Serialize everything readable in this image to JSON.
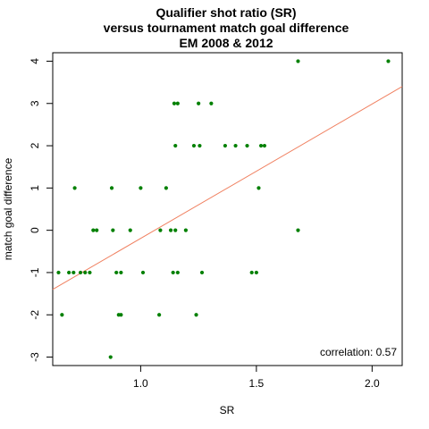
{
  "chart_data": {
    "type": "scatter",
    "title_lines": [
      "Qualifier shot ratio (SR)",
      "versus tournament match goal difference",
      "EM 2008 & 2012"
    ],
    "xlabel": "SR",
    "ylabel": "match goal difference",
    "xlim": [
      0.62,
      2.13
    ],
    "ylim": [
      -3.2,
      4.2
    ],
    "x_ticks": [
      1.0,
      1.5,
      2.0
    ],
    "x_tick_labels": [
      "1.0",
      "1.5",
      "2.0"
    ],
    "y_ticks": [
      -3,
      -2,
      -1,
      0,
      1,
      2,
      3,
      4
    ],
    "y_tick_labels": [
      "-3",
      "-2",
      "-1",
      "0",
      "1",
      "2",
      "3",
      "4"
    ],
    "grid": false,
    "point_color": "#008000",
    "line_color": "#f08060",
    "points": [
      {
        "x": 0.645,
        "y": -1
      },
      {
        "x": 0.66,
        "y": -2
      },
      {
        "x": 0.69,
        "y": -1
      },
      {
        "x": 0.71,
        "y": -1
      },
      {
        "x": 0.715,
        "y": 1
      },
      {
        "x": 0.74,
        "y": -1
      },
      {
        "x": 0.76,
        "y": -1
      },
      {
        "x": 0.78,
        "y": -1
      },
      {
        "x": 0.795,
        "y": 0
      },
      {
        "x": 0.81,
        "y": 0
      },
      {
        "x": 0.87,
        "y": -3
      },
      {
        "x": 0.875,
        "y": 1
      },
      {
        "x": 0.88,
        "y": 0
      },
      {
        "x": 0.895,
        "y": -1
      },
      {
        "x": 0.905,
        "y": -2
      },
      {
        "x": 0.915,
        "y": -2
      },
      {
        "x": 0.915,
        "y": -1
      },
      {
        "x": 0.955,
        "y": 0
      },
      {
        "x": 1.0,
        "y": 1
      },
      {
        "x": 1.01,
        "y": -1
      },
      {
        "x": 1.08,
        "y": -2
      },
      {
        "x": 1.085,
        "y": 0
      },
      {
        "x": 1.11,
        "y": 1
      },
      {
        "x": 1.13,
        "y": 0
      },
      {
        "x": 1.14,
        "y": -1
      },
      {
        "x": 1.145,
        "y": 3
      },
      {
        "x": 1.15,
        "y": 0
      },
      {
        "x": 1.15,
        "y": 2
      },
      {
        "x": 1.16,
        "y": 3
      },
      {
        "x": 1.16,
        "y": -1
      },
      {
        "x": 1.195,
        "y": 0
      },
      {
        "x": 1.23,
        "y": 2
      },
      {
        "x": 1.24,
        "y": -2
      },
      {
        "x": 1.25,
        "y": 3
      },
      {
        "x": 1.255,
        "y": 2
      },
      {
        "x": 1.265,
        "y": -1
      },
      {
        "x": 1.305,
        "y": 3
      },
      {
        "x": 1.365,
        "y": 2
      },
      {
        "x": 1.41,
        "y": 2
      },
      {
        "x": 1.46,
        "y": 2
      },
      {
        "x": 1.48,
        "y": -1
      },
      {
        "x": 1.5,
        "y": -1
      },
      {
        "x": 1.51,
        "y": 1
      },
      {
        "x": 1.52,
        "y": 2
      },
      {
        "x": 1.535,
        "y": 2
      },
      {
        "x": 1.68,
        "y": 4
      },
      {
        "x": 1.68,
        "y": 0
      },
      {
        "x": 2.07,
        "y": 4
      }
    ],
    "regression_line": {
      "x": [
        0.62,
        2.13
      ],
      "y": [
        -1.4,
        3.4
      ]
    },
    "annotation": "correlation: 0.57"
  }
}
